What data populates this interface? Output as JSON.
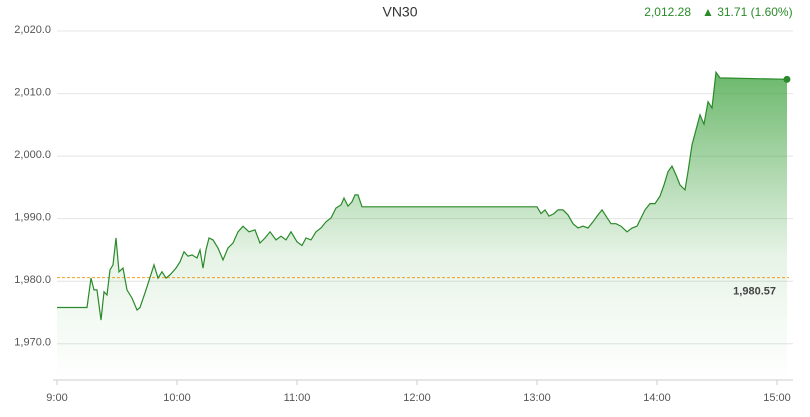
{
  "chart_data": {
    "type": "line",
    "title": "VN30",
    "last_price": "2,012.28",
    "change": "▲ 31.71 (1.60%)",
    "color": "#2a8a2a",
    "reference_color": "#f0a020",
    "grid": true,
    "reference": {
      "value": 1980.57,
      "label": "1,980.57"
    },
    "xlim": [
      9,
      15.1
    ],
    "ylim": [
      1964.2,
      2022.5
    ],
    "xticks": [
      {
        "value": 9,
        "label": "9:00"
      },
      {
        "value": 10,
        "label": "10:00"
      },
      {
        "value": 11,
        "label": "11:00"
      },
      {
        "value": 12,
        "label": "12:00"
      },
      {
        "value": 13,
        "label": "13:00"
      },
      {
        "value": 14,
        "label": "14:00"
      },
      {
        "value": 15,
        "label": "15:00"
      }
    ],
    "yticks": [
      {
        "value": 1970,
        "label": "1,970.0"
      },
      {
        "value": 1980,
        "label": "1,980.0"
      },
      {
        "value": 1990,
        "label": "1,990.0"
      },
      {
        "value": 2000,
        "label": "2,000.0"
      },
      {
        "value": 2010,
        "label": "2,010.0"
      },
      {
        "value": 2020,
        "label": "2,020.0"
      }
    ],
    "x": [
      9.0,
      9.25,
      9.283,
      9.308,
      9.333,
      9.367,
      9.392,
      9.417,
      9.442,
      9.467,
      9.492,
      9.517,
      9.55,
      9.583,
      9.625,
      9.667,
      9.692,
      9.742,
      9.808,
      9.842,
      9.875,
      9.908,
      9.942,
      9.992,
      10.025,
      10.058,
      10.092,
      10.125,
      10.167,
      10.192,
      10.217,
      10.242,
      10.267,
      10.3,
      10.342,
      10.383,
      10.425,
      10.467,
      10.508,
      10.55,
      10.6,
      10.65,
      10.692,
      10.733,
      10.775,
      10.825,
      10.867,
      10.908,
      10.95,
      11.0,
      11.042,
      11.075,
      11.117,
      11.158,
      11.2,
      11.242,
      11.283,
      11.325,
      11.367,
      11.392,
      11.425,
      11.458,
      11.483,
      11.508,
      11.542,
      13.0,
      13.033,
      13.067,
      13.1,
      13.142,
      13.175,
      13.217,
      13.258,
      13.3,
      13.342,
      13.383,
      13.425,
      13.467,
      13.508,
      13.542,
      13.575,
      13.617,
      13.658,
      13.7,
      13.75,
      13.792,
      13.833,
      13.867,
      13.9,
      13.942,
      13.983,
      14.025,
      14.058,
      14.092,
      14.125,
      14.158,
      14.192,
      14.233,
      14.258,
      14.292,
      14.325,
      14.358,
      14.392,
      14.425,
      14.458,
      14.492,
      14.525,
      15.083
    ],
    "values": [
      1975.8,
      1975.8,
      1980.5,
      1978.6,
      1978.6,
      1973.8,
      1978.3,
      1977.8,
      1981.8,
      1982.6,
      1986.9,
      1981.5,
      1982.1,
      1978.6,
      1977.3,
      1975.4,
      1975.8,
      1978.6,
      1982.6,
      1980.5,
      1981.5,
      1980.5,
      1981.0,
      1982.1,
      1983.1,
      1984.7,
      1984.0,
      1984.2,
      1983.7,
      1985.0,
      1982.1,
      1985.0,
      1986.9,
      1986.6,
      1985.3,
      1983.4,
      1985.3,
      1986.1,
      1987.9,
      1988.8,
      1987.9,
      1988.2,
      1986.1,
      1986.9,
      1987.9,
      1986.6,
      1987.2,
      1986.6,
      1987.9,
      1986.3,
      1985.7,
      1986.9,
      1986.6,
      1987.9,
      1988.5,
      1989.5,
      1990.1,
      1991.7,
      1992.2,
      1993.3,
      1992.0,
      1992.7,
      1993.8,
      1993.8,
      1991.9,
      1991.9,
      1990.8,
      1991.4,
      1990.4,
      1990.8,
      1991.4,
      1991.4,
      1990.6,
      1989.2,
      1988.5,
      1988.8,
      1988.5,
      1989.5,
      1990.6,
      1991.4,
      1990.4,
      1989.2,
      1989.2,
      1988.8,
      1987.9,
      1988.5,
      1988.8,
      1990.1,
      1991.4,
      1992.4,
      1992.4,
      1993.6,
      1995.4,
      1997.5,
      1998.4,
      1997.0,
      1995.4,
      1994.6,
      1997.5,
      2001.8,
      2004.2,
      2006.6,
      2005.1,
      2008.7,
      2007.7,
      2013.4,
      2012.5,
      2012.28
    ]
  }
}
